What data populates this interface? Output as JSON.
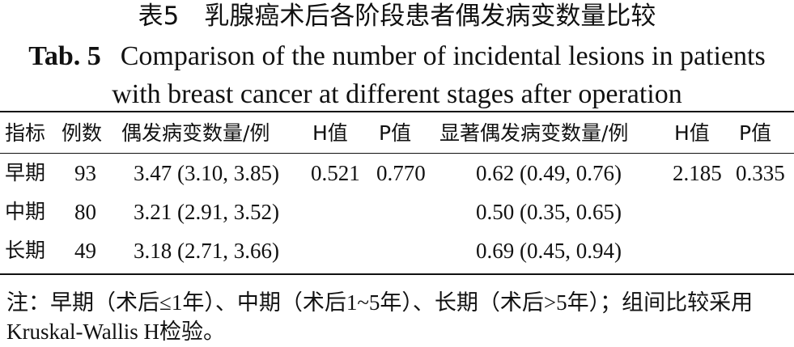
{
  "title_cn": "表5　乳腺癌术后各阶段患者偶发病变数量比较",
  "title_en": {
    "label": "Tab. 5",
    "text": "Comparison of the number of incidental lesions in patients with breast cancer at different stages after operation"
  },
  "table": {
    "header": [
      "指标",
      "例数",
      "偶发病变数量/例",
      "H值",
      "P值",
      "显著偶发病变数量/例",
      "H值",
      "P值"
    ],
    "rows": [
      {
        "stage": "早期",
        "n": 93,
        "incidental": "3.47 (3.10, 3.85)",
        "h1": "0.521",
        "p1": "0.770",
        "significant": "0.62 (0.49, 0.76)",
        "h2": "2.185",
        "p2": "0.335"
      },
      {
        "stage": "中期",
        "n": 80,
        "incidental": "3.21 (2.91, 3.52)",
        "significant": "0.50 (0.35, 0.65)"
      },
      {
        "stage": "长期",
        "n": 49,
        "incidental": "3.18 (2.71, 3.66)",
        "significant": "0.69 (0.45, 0.94)"
      }
    ]
  },
  "note": "注：早期（术后≤1年）、中期（术后1~5年）、长期（术后>5年）；组间比较采用Kruskal-Wallis H检验。"
}
